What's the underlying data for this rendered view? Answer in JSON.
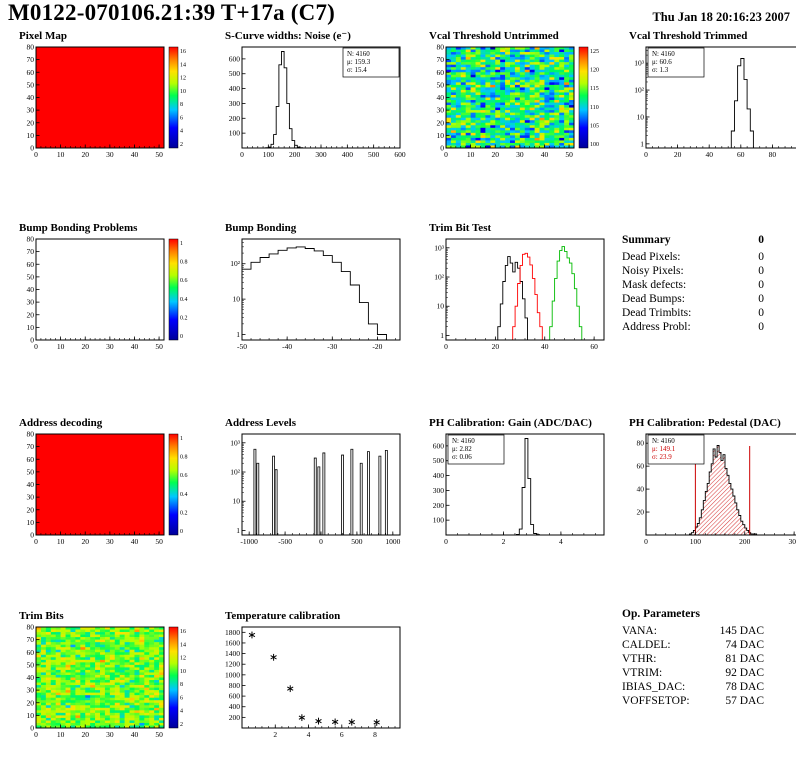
{
  "header": {
    "title": "M0122-070106.21:39 T+17a (C7)",
    "datetime": "Thu Jan 18 20:16:23 2007"
  },
  "summary": {
    "title": "Summary",
    "value": "0",
    "rows": [
      {
        "label": "Dead Pixels:",
        "value": "0"
      },
      {
        "label": "Noisy Pixels:",
        "value": "0"
      },
      {
        "label": "Mask defects:",
        "value": "0"
      },
      {
        "label": "Dead Bumps:",
        "value": "0"
      },
      {
        "label": "Dead Trimbits:",
        "value": "0"
      },
      {
        "label": "Address Probl:",
        "value": "0"
      }
    ]
  },
  "op_parameters": {
    "title": "Op. Parameters",
    "rows": [
      {
        "label": "VANA:",
        "value": "145 DAC"
      },
      {
        "label": "CALDEL:",
        "value": "74 DAC"
      },
      {
        "label": "VTHR:",
        "value": "81 DAC"
      },
      {
        "label": "VTRIM:",
        "value": "92 DAC"
      },
      {
        "label": "IBIAS_DAC:",
        "value": "78 DAC"
      },
      {
        "label": "VOFFSETOP:",
        "value": "57 DAC"
      }
    ]
  },
  "chart_data": [
    {
      "id": "pixel_map",
      "title": "Pixel Map",
      "type": "heatmap",
      "fill_mode": "uniform",
      "fill_color": "#ff0000",
      "x_range": [
        0,
        52
      ],
      "y_range": [
        0,
        80
      ],
      "x_ticks": [
        0,
        10,
        20,
        30,
        40,
        50
      ],
      "y_ticks": [
        0,
        10,
        20,
        30,
        40,
        50,
        60,
        70,
        80
      ],
      "colorbar": {
        "ticks": [
          "16",
          "14",
          "12",
          "10",
          "8",
          "6",
          "4",
          "2"
        ]
      }
    },
    {
      "id": "scurve",
      "title": "S-Curve widths: Noise (e⁻)",
      "type": "histogram",
      "x_range": [
        0,
        600
      ],
      "y_range": [
        0,
        680
      ],
      "x_ticks": [
        0,
        100,
        200,
        300,
        400,
        500,
        600
      ],
      "y_ticks": [
        100,
        200,
        300,
        400,
        500,
        600
      ],
      "bins": {
        "x0": 90,
        "bw": 10,
        "counts": [
          2,
          6,
          25,
          90,
          280,
          560,
          650,
          540,
          300,
          130,
          50,
          18,
          6,
          2
        ]
      },
      "stats": {
        "pos": "right",
        "lines": [
          {
            "text": "N: 4160",
            "color": "#000000"
          },
          {
            "text": "μ: 159.3",
            "color": "#000000"
          },
          {
            "text": "σ: 15.4",
            "color": "#000000"
          }
        ]
      }
    },
    {
      "id": "vcal_untrimmed",
      "title": "Vcal Threshold Untrimmed",
      "type": "heatmap",
      "fill_mode": "noise",
      "noise": {
        "mean": 113,
        "sigma": 5,
        "zmin": 95,
        "zmax": 132,
        "seed": 42
      },
      "x_range": [
        0,
        52
      ],
      "y_range": [
        0,
        80
      ],
      "x_ticks": [
        0,
        10,
        20,
        30,
        40,
        50
      ],
      "y_ticks": [
        0,
        10,
        20,
        30,
        40,
        50,
        60,
        70,
        80
      ],
      "colorbar": {
        "ticks": [
          "125",
          "120",
          "115",
          "110",
          "105",
          "100"
        ]
      }
    },
    {
      "id": "vcal_trimmed",
      "title": "Vcal Threshold Trimmed",
      "type": "histogram",
      "ylog": true,
      "x_range": [
        0,
        100
      ],
      "y_range": [
        0.7,
        4000
      ],
      "x_ticks": [
        0,
        20,
        40,
        60,
        80,
        100
      ],
      "bins": {
        "x0": 54,
        "bw": 2,
        "counts": [
          3,
          40,
          800,
          1500,
          250,
          20,
          3
        ]
      },
      "stats": {
        "pos": "left",
        "lines": [
          {
            "text": "N: 4160",
            "color": "#000000"
          },
          {
            "text": "μ: 60.6",
            "color": "#000000"
          },
          {
            "text": "σ: 1.3",
            "color": "#000000"
          }
        ]
      }
    },
    {
      "id": "bump_problems",
      "title": "Bump Bonding Problems",
      "type": "heatmap",
      "fill_mode": "empty",
      "x_range": [
        0,
        52
      ],
      "y_range": [
        0,
        80
      ],
      "x_ticks": [
        0,
        10,
        20,
        30,
        40,
        50
      ],
      "y_ticks": [
        0,
        10,
        20,
        30,
        40,
        50,
        60,
        70,
        80
      ],
      "colorbar": {
        "ticks": [
          "1",
          "0.8",
          "0.6",
          "0.4",
          "0.2",
          "0"
        ]
      }
    },
    {
      "id": "bump_bonding",
      "title": "Bump Bonding",
      "type": "histogram",
      "ylog": true,
      "x_range": [
        -50,
        -15
      ],
      "y_range": [
        0.7,
        500
      ],
      "x_ticks": [
        -50,
        -40,
        -30,
        -20
      ],
      "bins": {
        "x0": -50,
        "bw": 2,
        "counts": [
          70,
          110,
          150,
          190,
          240,
          280,
          300,
          270,
          230,
          170,
          110,
          60,
          25,
          8,
          2,
          1
        ]
      }
    },
    {
      "id": "trim_bit_test",
      "title": "Trim Bit Test",
      "type": "multi_histogram",
      "ylog": true,
      "x_range": [
        0,
        64
      ],
      "y_range": [
        0.7,
        2000
      ],
      "x_ticks": [
        0,
        20,
        40,
        60
      ],
      "series": [
        {
          "name": "trim-bit-black",
          "color": "#000000",
          "x0": 21,
          "bw": 1,
          "counts": [
            2,
            12,
            70,
            250,
            500,
            300,
            150,
            320,
            200,
            70,
            18,
            4
          ]
        },
        {
          "name": "trim-bit-red",
          "color": "#ff0000",
          "x0": 27,
          "bw": 1,
          "counts": [
            2,
            10,
            60,
            250,
            600,
            650,
            480,
            260,
            90,
            25,
            6,
            2
          ]
        },
        {
          "name": "trim-bit-green",
          "color": "#00bb00",
          "x0": 42,
          "bw": 1,
          "counts": [
            2,
            15,
            90,
            350,
            800,
            1100,
            750,
            450,
            300,
            130,
            40,
            10,
            2
          ]
        }
      ]
    },
    {
      "id": "address_decoding",
      "title": "Address decoding",
      "type": "heatmap",
      "fill_mode": "uniform",
      "fill_color": "#ff0000",
      "x_range": [
        0,
        52
      ],
      "y_range": [
        0,
        80
      ],
      "x_ticks": [
        0,
        10,
        20,
        30,
        40,
        50
      ],
      "y_ticks": [
        0,
        10,
        20,
        30,
        40,
        50,
        60,
        70,
        80
      ],
      "colorbar": {
        "ticks": [
          "1",
          "0.8",
          "0.6",
          "0.4",
          "0.2",
          "0"
        ]
      }
    },
    {
      "id": "address_levels",
      "title": "Address Levels",
      "type": "spikes",
      "ylog": true,
      "x_range": [
        -1100,
        1100
      ],
      "y_range": [
        0.7,
        2000
      ],
      "x_ticks": [
        -1000,
        -500,
        0,
        500,
        1000
      ],
      "spike_width": 28,
      "spikes": [
        [
          -920,
          600
        ],
        [
          -880,
          200
        ],
        [
          -660,
          350
        ],
        [
          -625,
          120
        ],
        [
          -80,
          300
        ],
        [
          -30,
          150
        ],
        [
          40,
          450
        ],
        [
          300,
          380
        ],
        [
          430,
          600
        ],
        [
          560,
          200
        ],
        [
          660,
          500
        ],
        [
          820,
          350
        ],
        [
          910,
          550
        ]
      ]
    },
    {
      "id": "ph_gain",
      "title": "PH Calibration: Gain (ADC/DAC)",
      "type": "histogram",
      "x_range": [
        0,
        5.5
      ],
      "y_range": [
        0,
        680
      ],
      "x_ticks": [
        0,
        2,
        4
      ],
      "y_ticks": [
        100,
        200,
        300,
        400,
        500,
        600
      ],
      "bins": {
        "x0": 2.45,
        "bw": 0.1,
        "counts": [
          4,
          40,
          320,
          650,
          380,
          70,
          10,
          3
        ]
      },
      "stats": {
        "pos": "left",
        "lines": [
          {
            "text": "N: 4160",
            "color": "#000000"
          },
          {
            "text": "μ: 2.82",
            "color": "#000000"
          },
          {
            "text": "σ: 0.06",
            "color": "#000000"
          }
        ]
      }
    },
    {
      "id": "ph_pedestal",
      "title": "PH Calibration: Pedestal (DAC)",
      "type": "histogram",
      "fill": "hatch-red",
      "x_range": [
        0,
        320
      ],
      "y_range": [
        0,
        88
      ],
      "x_ticks": [
        0,
        100,
        200,
        300
      ],
      "y_ticks": [
        20,
        40,
        60,
        80
      ],
      "bins": {
        "x0": 88,
        "bw": 4,
        "counts": [
          1,
          2,
          4,
          7,
          10,
          15,
          22,
          30,
          38,
          45,
          55,
          62,
          75,
          68,
          78,
          72,
          65,
          70,
          58,
          52,
          45,
          40,
          34,
          28,
          22,
          17,
          12,
          9,
          6,
          4,
          2,
          1,
          1,
          1
        ]
      },
      "vlines": [
        {
          "x": 100,
          "color": "#cc0000"
        },
        {
          "x": 210,
          "color": "#cc0000"
        }
      ],
      "stats": {
        "pos": "left",
        "lines": [
          {
            "text": "N: 4160",
            "color": "#000000"
          },
          {
            "text": "μ: 149.1",
            "color": "#cc0000"
          },
          {
            "text": "σ: 23.9",
            "color": "#cc0000"
          }
        ]
      }
    },
    {
      "id": "trim_bits",
      "title": "Trim Bits",
      "type": "heatmap",
      "fill_mode": "noise",
      "noise": {
        "mean": 9.6,
        "sigma": 1.3,
        "zmin": 0,
        "zmax": 16,
        "seed": 7
      },
      "x_range": [
        0,
        52
      ],
      "y_range": [
        0,
        80
      ],
      "x_ticks": [
        0,
        10,
        20,
        30,
        40,
        50
      ],
      "y_ticks": [
        0,
        10,
        20,
        30,
        40,
        50,
        60,
        70,
        80
      ],
      "colorbar": {
        "ticks": [
          "16",
          "14",
          "12",
          "10",
          "8",
          "6",
          "4",
          "2"
        ]
      }
    },
    {
      "id": "temp_calibration",
      "title": "Temperature calibration",
      "type": "scatter",
      "marker": "asterisk",
      "x_range": [
        0,
        9.5
      ],
      "y_range": [
        0,
        1900
      ],
      "x_ticks": [
        2,
        4,
        6,
        8
      ],
      "y_ticks": [
        200,
        400,
        600,
        800,
        1000,
        1200,
        1400,
        1600,
        1800
      ],
      "points": [
        [
          0.6,
          1750
        ],
        [
          1.9,
          1330
        ],
        [
          2.9,
          740
        ],
        [
          3.6,
          195
        ],
        [
          4.6,
          130
        ],
        [
          5.6,
          115
        ],
        [
          6.6,
          110
        ],
        [
          8.1,
          105
        ]
      ]
    }
  ]
}
